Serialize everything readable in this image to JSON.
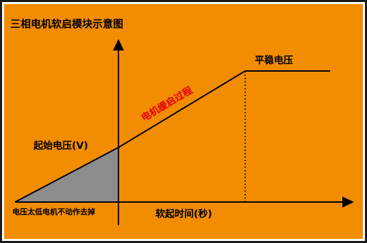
{
  "diagram": {
    "title": "三相电机软启模块示意图",
    "labels": {
      "start_voltage": "起始电压(V)",
      "stable_voltage": "平稳电压",
      "ramp_process": "电机缓启过程",
      "low_voltage_cutoff": "电压太低电机不动作去掉",
      "x_axis": "软起时间(秒)"
    },
    "colors": {
      "background": "#F28C00",
      "frame": "#1a1a1a",
      "ramp_text": "#E60012",
      "removed_region": "#8C8C8C",
      "line": "#000000"
    }
  }
}
